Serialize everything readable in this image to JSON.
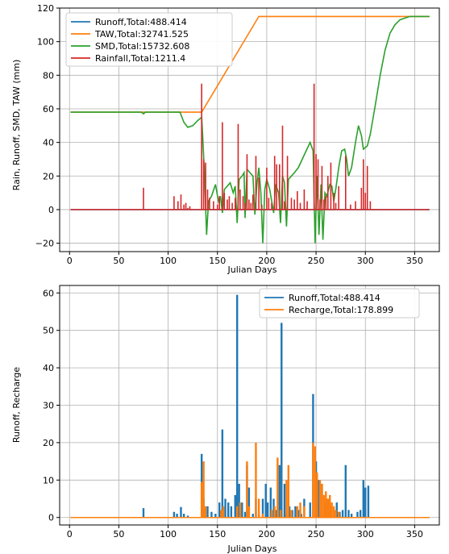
{
  "chart_data": [
    {
      "type": "line",
      "title": "",
      "xlabel": "Julian Days",
      "ylabel": "Rain, Runoff, SMD, TAW (mm)",
      "xlim": [
        -10,
        375
      ],
      "ylim": [
        -25,
        120
      ],
      "xticks": [
        0,
        50,
        100,
        150,
        200,
        250,
        300,
        350
      ],
      "yticks": [
        -20,
        0,
        20,
        40,
        60,
        80,
        100,
        120
      ],
      "grid": true,
      "legend_position": "top-left",
      "series": [
        {
          "name": "Runoff,Total:488.414",
          "color": "#1f77b4",
          "kind": "line",
          "points": [
            [
              1,
              0
            ],
            [
              365,
              0
            ]
          ]
        },
        {
          "name": "TAW,Total:32741.525",
          "color": "#ff7f0e",
          "kind": "line",
          "points": [
            [
              1,
              58
            ],
            [
              134,
              58
            ],
            [
              192,
              115
            ],
            [
              365,
              115
            ]
          ]
        },
        {
          "name": "SMD,Total:15732.608",
          "color": "#2ca02c",
          "kind": "line",
          "points": [
            [
              1,
              58
            ],
            [
              73,
              58
            ],
            [
              75,
              57
            ],
            [
              77,
              58
            ],
            [
              112,
              58
            ],
            [
              116,
              52
            ],
            [
              120,
              49
            ],
            [
              125,
              50
            ],
            [
              130,
              53
            ],
            [
              134,
              55
            ],
            [
              135,
              44
            ],
            [
              137,
              20
            ],
            [
              139,
              -15
            ],
            [
              141,
              5
            ],
            [
              144,
              8
            ],
            [
              148,
              15
            ],
            [
              151,
              5
            ],
            [
              153,
              8
            ],
            [
              155,
              -2
            ],
            [
              157,
              12
            ],
            [
              160,
              14
            ],
            [
              163,
              16
            ],
            [
              166,
              10
            ],
            [
              168,
              14
            ],
            [
              170,
              -8
            ],
            [
              172,
              18
            ],
            [
              175,
              20
            ],
            [
              177,
              22
            ],
            [
              178,
              -5
            ],
            [
              180,
              24
            ],
            [
              183,
              22
            ],
            [
              186,
              20
            ],
            [
              188,
              -3
            ],
            [
              190,
              15
            ],
            [
              192,
              25
            ],
            [
              194,
              10
            ],
            [
              196,
              -20
            ],
            [
              198,
              12
            ],
            [
              200,
              18
            ],
            [
              203,
              12
            ],
            [
              205,
              5
            ],
            [
              207,
              -2
            ],
            [
              209,
              15
            ],
            [
              212,
              10
            ],
            [
              214,
              -8
            ],
            [
              216,
              20
            ],
            [
              218,
              16
            ],
            [
              220,
              -10
            ],
            [
              222,
              18
            ],
            [
              225,
              20
            ],
            [
              228,
              22
            ],
            [
              232,
              25
            ],
            [
              236,
              30
            ],
            [
              240,
              35
            ],
            [
              244,
              40
            ],
            [
              247,
              35
            ],
            [
              249,
              -20
            ],
            [
              251,
              20
            ],
            [
              253,
              -15
            ],
            [
              255,
              15
            ],
            [
              257,
              -18
            ],
            [
              259,
              10
            ],
            [
              261,
              8
            ],
            [
              264,
              15
            ],
            [
              266,
              14
            ],
            [
              268,
              5
            ],
            [
              270,
              12
            ],
            [
              273,
              25
            ],
            [
              276,
              35
            ],
            [
              279,
              36
            ],
            [
              281,
              30
            ],
            [
              283,
              20
            ],
            [
              286,
              25
            ],
            [
              290,
              40
            ],
            [
              293,
              50
            ],
            [
              296,
              44
            ],
            [
              298,
              36
            ],
            [
              302,
              38
            ],
            [
              305,
              45
            ],
            [
              310,
              62
            ],
            [
              315,
              80
            ],
            [
              320,
              95
            ],
            [
              325,
              105
            ],
            [
              330,
              110
            ],
            [
              335,
              113
            ],
            [
              340,
              114
            ],
            [
              345,
              115
            ],
            [
              350,
              115
            ],
            [
              365,
              115
            ]
          ]
        },
        {
          "name": "Rainfall,Total:1211.4",
          "color": "#d62728",
          "kind": "spikes",
          "points": [
            [
              75,
              13
            ],
            [
              106,
              8
            ],
            [
              110,
              5
            ],
            [
              113,
              9
            ],
            [
              116,
              3
            ],
            [
              118,
              4
            ],
            [
              120,
              1
            ],
            [
              122,
              2
            ],
            [
              134,
              75
            ],
            [
              136,
              30
            ],
            [
              138,
              28
            ],
            [
              140,
              12
            ],
            [
              142,
              7
            ],
            [
              146,
              5
            ],
            [
              150,
              3
            ],
            [
              152,
              8
            ],
            [
              155,
              52
            ],
            [
              157,
              10
            ],
            [
              160,
              6
            ],
            [
              162,
              8
            ],
            [
              165,
              4
            ],
            [
              168,
              7
            ],
            [
              171,
              51
            ],
            [
              173,
              12
            ],
            [
              176,
              8
            ],
            [
              178,
              4
            ],
            [
              180,
              33
            ],
            [
              182,
              6
            ],
            [
              184,
              4
            ],
            [
              186,
              9
            ],
            [
              189,
              32
            ],
            [
              192,
              19
            ],
            [
              195,
              3
            ],
            [
              200,
              25
            ],
            [
              202,
              7
            ],
            [
              205,
              4
            ],
            [
              208,
              32
            ],
            [
              210,
              27
            ],
            [
              213,
              27
            ],
            [
              216,
              50
            ],
            [
              218,
              5
            ],
            [
              221,
              32
            ],
            [
              225,
              7
            ],
            [
              228,
              6
            ],
            [
              231,
              11
            ],
            [
              234,
              4
            ],
            [
              238,
              12
            ],
            [
              241,
              5
            ],
            [
              248,
              75
            ],
            [
              250,
              33
            ],
            [
              252,
              30
            ],
            [
              254,
              6
            ],
            [
              256,
              26
            ],
            [
              258,
              6
            ],
            [
              260,
              8
            ],
            [
              262,
              20
            ],
            [
              265,
              28
            ],
            [
              268,
              10
            ],
            [
              270,
              4
            ],
            [
              273,
              14
            ],
            [
              280,
              32
            ],
            [
              285,
              3
            ],
            [
              290,
              5
            ],
            [
              296,
              13
            ],
            [
              298,
              30
            ],
            [
              300,
              10
            ],
            [
              302,
              26
            ],
            [
              305,
              5
            ]
          ]
        }
      ]
    },
    {
      "type": "bar",
      "title": "",
      "xlabel": "Julian Days",
      "ylabel": "Runoff, Recharge",
      "xlim": [
        -10,
        375
      ],
      "ylim": [
        -2,
        62
      ],
      "xticks": [
        0,
        50,
        100,
        150,
        200,
        250,
        300,
        350
      ],
      "yticks": [
        0,
        10,
        20,
        30,
        40,
        50,
        60
      ],
      "grid": true,
      "legend_position": "top-right",
      "series": [
        {
          "name": "Runoff,Total:488.414",
          "color": "#1f77b4",
          "kind": "spikes",
          "points": [
            [
              75,
              2.5
            ],
            [
              106,
              1.5
            ],
            [
              109,
              1
            ],
            [
              113,
              2.8
            ],
            [
              116,
              1
            ],
            [
              120,
              0.5
            ],
            [
              134,
              17
            ],
            [
              136,
              5
            ],
            [
              140,
              3
            ],
            [
              144,
              1.5
            ],
            [
              148,
              1
            ],
            [
              152,
              4
            ],
            [
              155,
              23.5
            ],
            [
              158,
              5
            ],
            [
              161,
              4
            ],
            [
              164,
              3
            ],
            [
              168,
              6
            ],
            [
              170,
              59.5
            ],
            [
              172,
              9
            ],
            [
              175,
              4
            ],
            [
              178,
              1.5
            ],
            [
              180,
              14
            ],
            [
              182,
              8
            ],
            [
              186,
              1
            ],
            [
              189,
              5
            ],
            [
              192,
              1
            ],
            [
              196,
              5
            ],
            [
              199,
              9
            ],
            [
              201,
              4
            ],
            [
              204,
              8
            ],
            [
              207,
              5
            ],
            [
              210,
              2
            ],
            [
              213,
              14
            ],
            [
              215,
              52
            ],
            [
              218,
              9
            ],
            [
              220,
              1
            ],
            [
              223,
              3
            ],
            [
              226,
              2
            ],
            [
              229,
              3
            ],
            [
              232,
              2
            ],
            [
              235,
              1
            ],
            [
              238,
              5
            ],
            [
              244,
              4
            ],
            [
              247,
              33
            ],
            [
              250,
              15
            ],
            [
              253,
              10
            ],
            [
              256,
              9
            ],
            [
              259,
              4
            ],
            [
              262,
              5
            ],
            [
              265,
              3
            ],
            [
              268,
              2
            ],
            [
              271,
              4
            ],
            [
              274,
              1.5
            ],
            [
              277,
              2
            ],
            [
              280,
              14
            ],
            [
              283,
              2
            ],
            [
              286,
              1
            ],
            [
              292,
              1.5
            ],
            [
              295,
              2
            ],
            [
              298,
              10
            ],
            [
              300,
              8
            ],
            [
              303,
              8.5
            ]
          ]
        },
        {
          "name": "Recharge,Total:178.899",
          "color": "#ff7f0e",
          "kind": "spikes",
          "points": [
            [
              1,
              0
            ],
            [
              365,
              0
            ],
            [
              134,
              9.5
            ],
            [
              136,
              15
            ],
            [
              138,
              3
            ],
            [
              154,
              2
            ],
            [
              156,
              3
            ],
            [
              170,
              3
            ],
            [
              173,
              4
            ],
            [
              180,
              15
            ],
            [
              182,
              3
            ],
            [
              189,
              20
            ],
            [
              192,
              5
            ],
            [
              196,
              1
            ],
            [
              205,
              2
            ],
            [
              208,
              3
            ],
            [
              211,
              16
            ],
            [
              214,
              2
            ],
            [
              220,
              10
            ],
            [
              222,
              14
            ],
            [
              225,
              2
            ],
            [
              231,
              3
            ],
            [
              234,
              4
            ],
            [
              238,
              3
            ],
            [
              247,
              20
            ],
            [
              249,
              19
            ],
            [
              251,
              12
            ],
            [
              254,
              10
            ],
            [
              256,
              9
            ],
            [
              258,
              6
            ],
            [
              260,
              7
            ],
            [
              262,
              5
            ],
            [
              264,
              6
            ],
            [
              266,
              4
            ],
            [
              268,
              3
            ],
            [
              270,
              2
            ],
            [
              273,
              1.5
            ]
          ]
        }
      ]
    }
  ]
}
